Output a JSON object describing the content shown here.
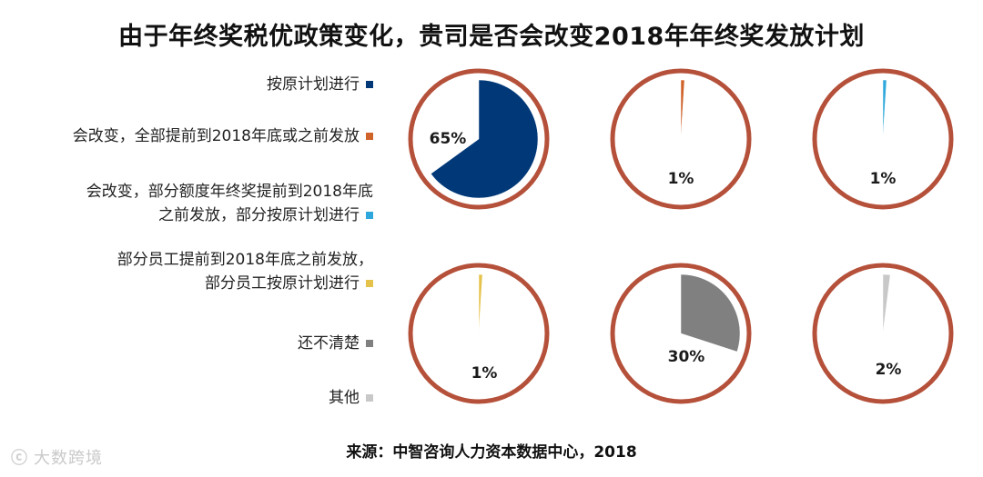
{
  "title": "由于年终奖税优政策变化，贵司是否会改变2018年年终奖发放计划",
  "source": "来源：中智咨询人力资本数据中心，2018",
  "watermark": "大数跨境",
  "chart_data": {
    "type": "pie",
    "title": "由于年终奖税优政策变化，贵司是否会改变2018年年终奖发放计划",
    "categories": [
      "按原计划进行",
      "会改变，全部提前到2018年底或之前发放",
      "会改变，部分额度年终奖提前到2018年底\n之前发放，部分按原计划进行",
      "部分员工提前到2018年底之前发放，\n部分员工按原计划进行",
      "还不清楚",
      "其他"
    ],
    "values": [
      65,
      1,
      1,
      1,
      30,
      2
    ],
    "labels": [
      "65%",
      "1%",
      "1%",
      "1%",
      "30%",
      "2%"
    ],
    "colors": [
      "#003878",
      "#d0632a",
      "#2ea8dc",
      "#e5c24a",
      "#808080",
      "#c8c8c8"
    ],
    "ring_color": "#b5513a",
    "legend_position": "left"
  }
}
